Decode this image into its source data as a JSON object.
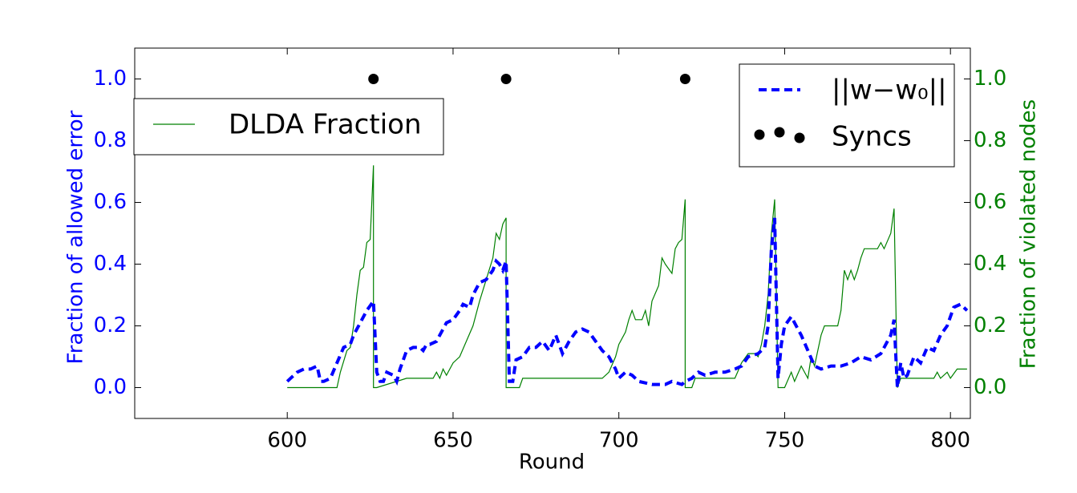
{
  "chart_data": {
    "type": "line",
    "xlabel": "Round",
    "ylabel": "Fraction of allowed error",
    "y2label": "Fraction of violated nodes",
    "ylabel_color": "blue",
    "y2label_color": "green",
    "xlim": [
      554,
      806
    ],
    "ylim": [
      -0.1,
      1.1
    ],
    "y2lim": [
      -0.1,
      1.1
    ],
    "xticks": [
      600,
      650,
      700,
      750,
      800
    ],
    "yticks": [
      {
        "value": 0,
        "label": "0.0"
      },
      {
        "value": 0.2,
        "label": "0.2"
      },
      {
        "value": 0.4,
        "label": "0.4"
      },
      {
        "value": 0.6,
        "label": "0.6"
      },
      {
        "value": 0.8,
        "label": "0.8"
      },
      {
        "value": 1,
        "label": "1.0"
      }
    ],
    "y2ticks": [
      {
        "value": 0,
        "label": "0.0"
      },
      {
        "value": 0.2,
        "label": "0.2"
      },
      {
        "value": 0.4,
        "label": "0.4"
      },
      {
        "value": 0.6,
        "label": "0.6"
      },
      {
        "value": 0.8,
        "label": "0.8"
      },
      {
        "value": 1,
        "label": "1.0"
      }
    ],
    "series": [
      {
        "name": "DLDA Fraction",
        "type": "line",
        "color": "green",
        "linestyle": "solid",
        "axis": "y2",
        "legend": "upper left",
        "x": [
          600,
          615,
          616,
          618,
          619,
          620,
          621,
          622,
          623,
          624,
          625,
          626,
          626,
          627,
          636,
          644,
          645,
          646,
          647,
          648,
          650,
          652,
          654,
          656,
          658,
          660,
          662,
          663,
          664,
          665,
          666,
          666,
          670,
          671,
          695,
          697,
          699,
          700,
          702,
          703,
          704,
          705,
          707,
          708,
          709,
          710,
          712,
          713,
          714,
          716,
          717,
          718,
          719,
          720,
          720,
          722,
          723,
          735,
          737,
          739,
          741,
          742,
          743,
          744,
          745,
          746,
          747,
          748,
          750,
          752,
          753,
          755,
          757,
          758,
          759,
          760,
          761,
          762,
          766,
          767,
          768,
          769,
          770,
          771,
          772,
          773,
          774,
          778,
          779,
          780,
          782,
          783,
          784,
          785,
          795,
          796,
          797,
          799,
          800,
          802,
          805
        ],
        "values": [
          0,
          0,
          0.05,
          0.12,
          0.13,
          0.2,
          0.3,
          0.38,
          0.39,
          0.47,
          0.48,
          0.72,
          0,
          0,
          0.03,
          0.03,
          0.05,
          0.03,
          0.06,
          0.04,
          0.08,
          0.1,
          0.15,
          0.2,
          0.28,
          0.35,
          0.42,
          0.5,
          0.48,
          0.53,
          0.55,
          0,
          0,
          0.03,
          0.03,
          0.05,
          0.1,
          0.14,
          0.18,
          0.22,
          0.25,
          0.22,
          0.22,
          0.25,
          0.2,
          0.28,
          0.33,
          0.42,
          0.4,
          0.37,
          0.45,
          0.47,
          0.48,
          0.61,
          0,
          0,
          0.03,
          0.03,
          0.08,
          0.11,
          0.11,
          0.1,
          0.14,
          0.2,
          0.3,
          0.5,
          0.61,
          0,
          0,
          0.05,
          0.02,
          0.07,
          0.03,
          0.1,
          0.07,
          0.12,
          0.17,
          0.2,
          0.2,
          0.25,
          0.38,
          0.35,
          0.38,
          0.35,
          0.38,
          0.42,
          0.45,
          0.45,
          0.47,
          0.45,
          0.5,
          0.58,
          0,
          0.03,
          0.03,
          0.05,
          0.03,
          0.05,
          0.03,
          0.06,
          0.06
        ]
      },
      {
        "name": "||w−w₀||",
        "type": "line",
        "color": "blue",
        "linestyle": "dashed",
        "axis": "y",
        "legend": "upper right",
        "x": [
          600,
          601,
          603,
          605,
          607,
          609,
          610,
          611,
          613,
          615,
          617,
          619,
          620,
          622,
          624,
          626,
          627,
          628,
          629,
          630,
          632,
          633,
          634,
          636,
          638,
          640,
          641,
          642,
          643,
          645,
          646,
          648,
          650,
          652,
          653,
          655,
          656,
          658,
          660,
          662,
          663,
          664,
          665,
          666,
          667,
          668,
          669,
          671,
          673,
          675,
          677,
          679,
          681,
          683,
          685,
          687,
          689,
          691,
          693,
          695,
          697,
          699,
          700,
          702,
          704,
          706,
          710,
          714,
          716,
          719,
          720,
          722,
          724,
          726,
          729,
          732,
          735,
          737,
          739,
          742,
          744,
          745,
          746,
          747,
          748,
          749,
          750,
          752,
          753,
          755,
          757,
          759,
          761,
          764,
          767,
          770,
          773,
          776,
          779,
          781,
          782,
          783,
          784,
          785,
          786,
          787,
          789,
          791,
          793,
          795,
          797,
          799,
          801,
          803,
          805
        ],
        "values": [
          0.02,
          0.03,
          0.05,
          0.06,
          0.06,
          0.07,
          0.02,
          0.02,
          0.03,
          0.08,
          0.13,
          0.14,
          0.17,
          0.21,
          0.25,
          0.28,
          0.05,
          0.02,
          0.02,
          0.05,
          0.04,
          0.02,
          0.06,
          0.12,
          0.13,
          0.13,
          0.12,
          0.14,
          0.14,
          0.15,
          0.17,
          0.21,
          0.22,
          0.25,
          0.27,
          0.26,
          0.3,
          0.34,
          0.35,
          0.38,
          0.41,
          0.4,
          0.38,
          0.41,
          0.02,
          0.02,
          0.09,
          0.1,
          0.13,
          0.13,
          0.15,
          0.12,
          0.17,
          0.11,
          0.15,
          0.18,
          0.19,
          0.18,
          0.15,
          0.12,
          0.1,
          0.06,
          0.03,
          0.05,
          0.04,
          0.02,
          0.01,
          0.01,
          0.02,
          0.01,
          0.02,
          0.03,
          0.05,
          0.04,
          0.05,
          0.05,
          0.06,
          0.07,
          0.1,
          0.11,
          0.13,
          0.2,
          0.45,
          0.55,
          0.03,
          0.14,
          0.2,
          0.23,
          0.21,
          0.17,
          0.12,
          0.07,
          0.06,
          0.07,
          0.07,
          0.08,
          0.1,
          0.09,
          0.11,
          0.15,
          0.17,
          0.22,
          0,
          0.08,
          0.03,
          0.04,
          0.1,
          0.08,
          0.13,
          0.12,
          0.17,
          0.2,
          0.26,
          0.27,
          0.25
        ]
      },
      {
        "name": "Syncs",
        "type": "scatter",
        "color": "black",
        "axis": "y",
        "legend": "upper right",
        "x": [
          626,
          666,
          720
        ],
        "values": [
          1,
          1,
          1
        ]
      }
    ]
  }
}
